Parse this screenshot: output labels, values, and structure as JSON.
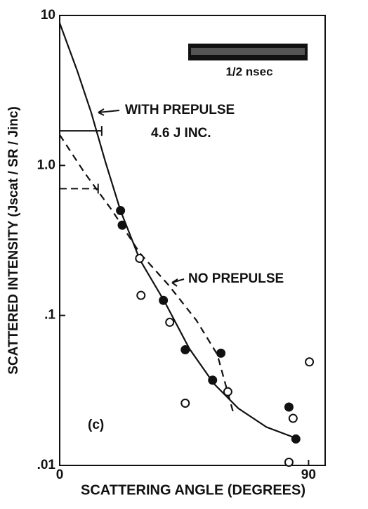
{
  "chart_data": {
    "type": "scatter",
    "x_label": "SCATTERING ANGLE (DEGREES)",
    "y_label": "SCATTERED INTENSITY (Jscat / SR / Jinc)",
    "log_y": true,
    "xlim": [
      0,
      96
    ],
    "ylim": [
      0.01,
      10
    ],
    "xticks": [
      0,
      90
    ],
    "yticks": [
      10,
      {
        "value": 1,
        "label": "1.0"
      },
      {
        "value": 0.1,
        "label": ".1"
      },
      {
        "value": 0.01,
        "label": ".01"
      }
    ],
    "color": "#111111",
    "series": [
      {
        "name": "WITH PREPULSE",
        "style": "solid",
        "x": [
          0,
          6.3,
          11.4,
          16.5,
          22,
          29,
          38,
          46.9,
          55.8,
          64.6,
          74.8,
          86.2
        ],
        "values": [
          8.9,
          4.3,
          2.25,
          1.06,
          0.5,
          0.235,
          0.123,
          0.06,
          0.035,
          0.024,
          0.018,
          0.015
        ]
      },
      {
        "name": "NO PREPULSE",
        "style": "dashed",
        "x": [
          0,
          8.9,
          19,
          29,
          39.3,
          49.4,
          57,
          62.9
        ],
        "values": [
          1.6,
          0.9,
          0.5,
          0.26,
          0.16,
          0.093,
          0.055,
          0.022
        ]
      },
      {
        "marker": "filled",
        "x": [
          22,
          22.6,
          37.5,
          45.4,
          55.3,
          58.3,
          82.9,
          85.4
        ],
        "values": [
          0.5,
          0.4,
          0.126,
          0.059,
          0.037,
          0.056,
          0.0245,
          0.015
        ]
      },
      {
        "marker": "open",
        "x": [
          28.9,
          29.4,
          39.8,
          45.4,
          60.8,
          84.4,
          82.9,
          90.3
        ],
        "values": [
          0.24,
          0.136,
          0.09,
          0.026,
          0.031,
          0.0206,
          0.0105,
          0.049
        ]
      }
    ],
    "error_bars": [
      {
        "y": 1.7,
        "xmin": 0,
        "xmax": 15.2,
        "style": "solid"
      },
      {
        "y": 0.7,
        "xmin": 0,
        "xmax": 13.9,
        "style": "dashed"
      }
    ],
    "annotations": [
      "4.6 J INC.",
      "(c)",
      "1/2 nsec"
    ]
  }
}
